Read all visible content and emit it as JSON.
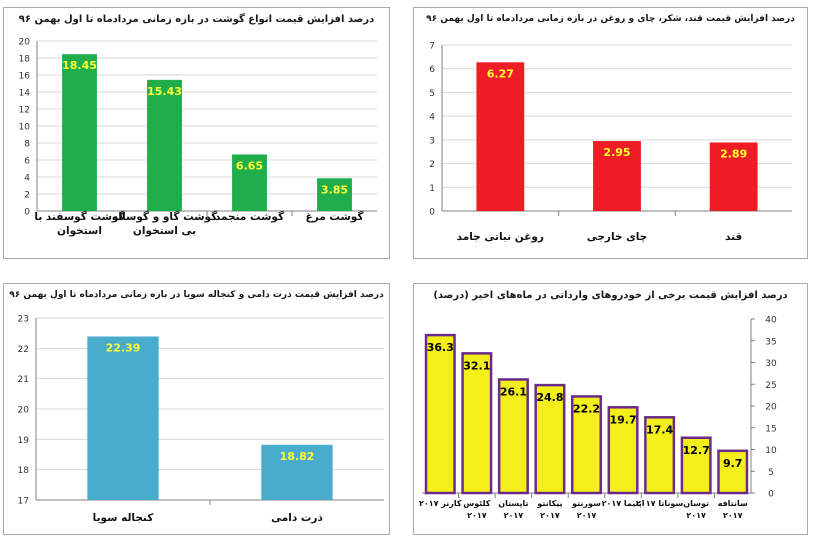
{
  "chart_data": [
    {
      "type": "bar",
      "title": "درصد افزایش قیمت انواع گوشت در بازه زمانی مردادماه تا اول بهمن ۹۶",
      "categories": [
        "گوشت مرغ",
        "گوشت منجمد",
        "گوشت گاو و گوساله بی استخوان",
        "گوشت گوسفند با استخوان"
      ],
      "values": [
        3.85,
        6.65,
        15.43,
        18.45
      ],
      "value_labels": [
        "3.85",
        "6.65",
        "15.43",
        "18.45"
      ],
      "y_ticks": [
        "0",
        "2",
        "4",
        "6",
        "8",
        "10",
        "12",
        "14",
        "16",
        "18",
        "20"
      ],
      "ylim": [
        0,
        20
      ],
      "grid": true,
      "bar_color": "#1fae4b",
      "label_color": "#ffff33"
    },
    {
      "type": "bar",
      "title": "درصد افزایش قیمت قند، شکر، چای و روغن در بازه زمانی مردادماه تا اول بهمن ۹۶",
      "categories": [
        "قند",
        "چای خارجی",
        "روغن نباتی جامد"
      ],
      "values": [
        2.89,
        2.95,
        6.27
      ],
      "value_labels": [
        "2.89",
        "2.95",
        "6.27"
      ],
      "y_ticks": [
        "0",
        "1",
        "2",
        "3",
        "4",
        "5",
        "6",
        "7"
      ],
      "ylim": [
        0,
        7
      ],
      "grid": true,
      "bar_color": "#ee1c25",
      "label_color": "#ffff33"
    },
    {
      "type": "bar",
      "title": "درصد افزایش قیمت ذرت دامی و کنجاله سویا در بازه زمانی مردادماه تا اول بهمن ۹۶",
      "categories": [
        "ذرت دامی",
        "کنجاله سویا"
      ],
      "values": [
        18.82,
        22.39
      ],
      "value_labels": [
        "18.82",
        "22.39"
      ],
      "y_ticks": [
        "17",
        "18",
        "19",
        "20",
        "21",
        "22",
        "23"
      ],
      "ylim": [
        17,
        23
      ],
      "grid": true,
      "bar_color": "#4aaccc",
      "label_color": "#ffff33"
    },
    {
      "type": "bar",
      "title": "درصد افزایش قیمت برخی از خودروهای وارداتی در ماه‌های اخیر (درصد)",
      "categories": [
        "سانتافه ۲۰۱۷",
        "توسان ۲۰۱۷",
        "سوناتا ۲۰۱۷",
        "اپتیما ۲۰۱۷",
        "سورنتو ۲۰۱۷",
        "پیکانتو ۲۰۱۷",
        "تاپستان ۲۰۱۷",
        "کلئوس ۲۰۱۷",
        "کارنز ۲۰۱۷"
      ],
      "values": [
        9.7,
        12.7,
        17.4,
        19.7,
        22.2,
        24.8,
        26.1,
        32.1,
        36.3
      ],
      "value_labels": [
        "9.7",
        "12.7",
        "17.4",
        "19.7",
        "22.2",
        "24.8",
        "26.1",
        "32.1",
        "36.3"
      ],
      "y_ticks": [
        "0",
        "5",
        "10",
        "15",
        "20",
        "25",
        "30",
        "35",
        "40"
      ],
      "ylim": [
        0,
        40
      ],
      "y_axis_side": "right",
      "grid": false,
      "bar_color": "#f4ef1a",
      "bar_border": "#6b2a8c",
      "label_color": "#000000"
    }
  ]
}
